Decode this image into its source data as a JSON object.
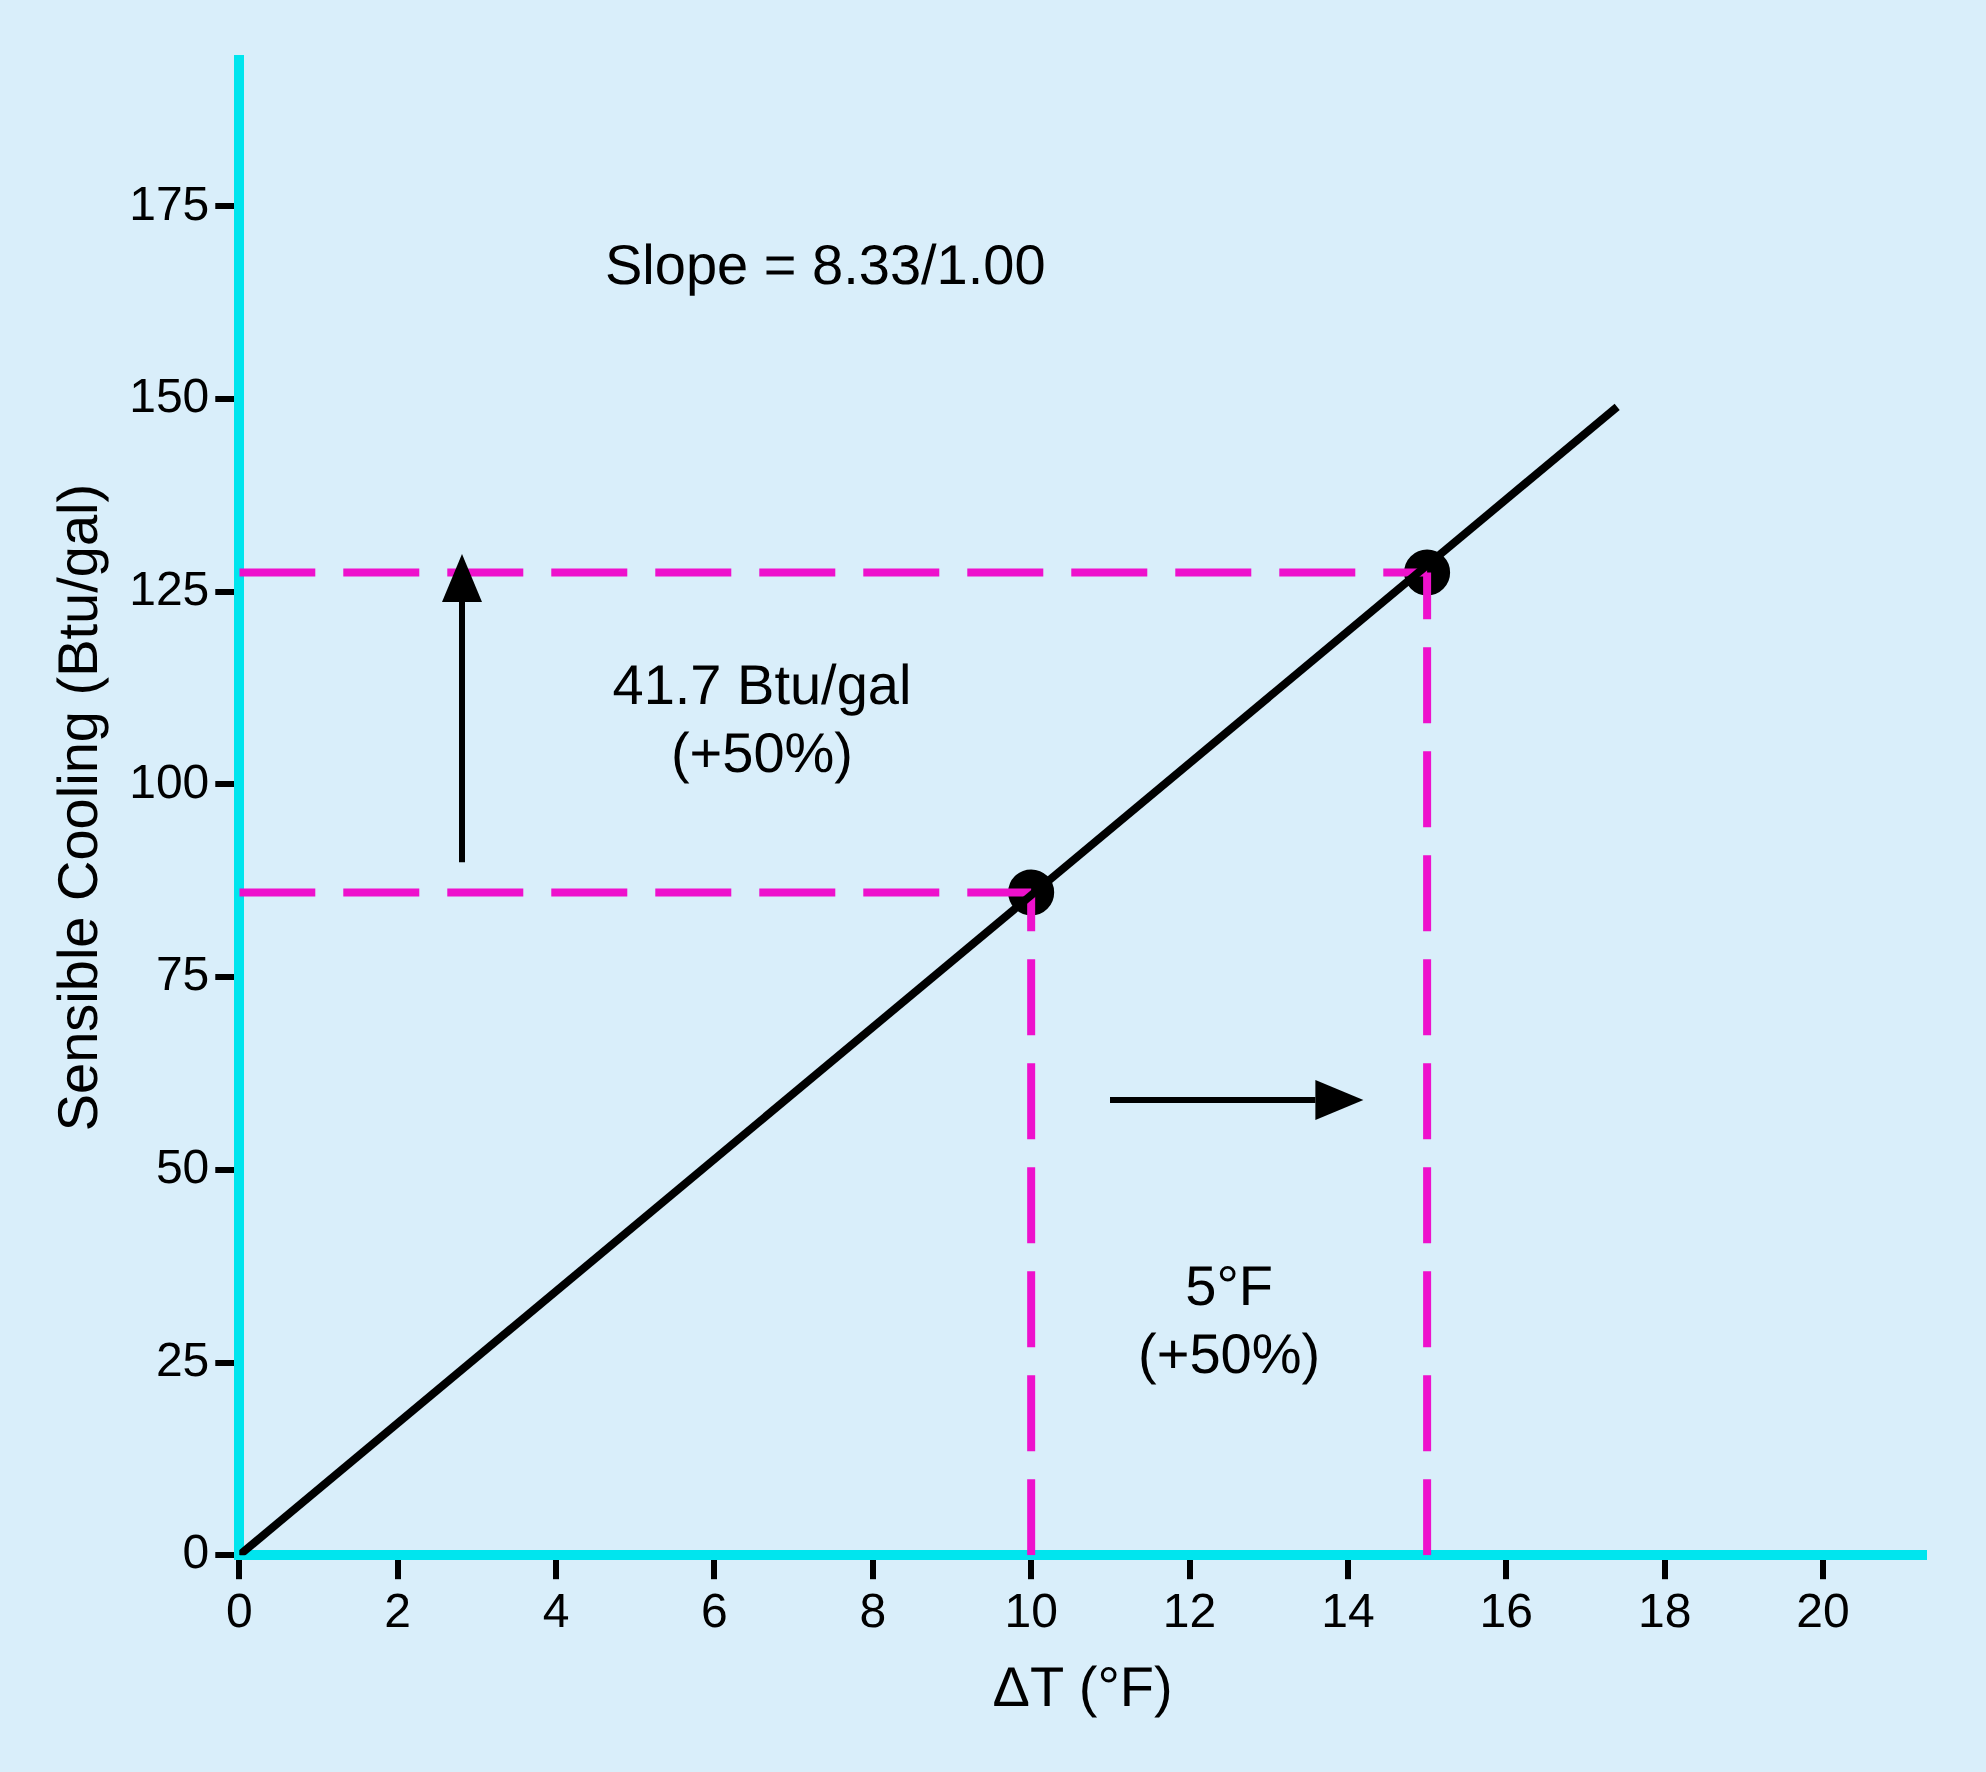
{
  "chart_data": {
    "type": "line",
    "xlabel": "ΔT (°F)",
    "ylabel": "Sensible Cooling (Btu/gal)",
    "xlim": [
      0,
      21.3
    ],
    "ylim": [
      0,
      194
    ],
    "xticks": [
      0,
      2,
      4,
      6,
      8,
      10,
      12,
      14,
      16,
      18,
      20
    ],
    "yticks": [
      0,
      25,
      50,
      75,
      100,
      125,
      150,
      175
    ],
    "grid": false,
    "legend": false,
    "marker": "none",
    "line_style": "solid",
    "series": [
      {
        "color": "#000000",
        "x": [
          0,
          17.4
        ],
        "values": [
          0,
          149
        ]
      },
      {
        "color": "#ee11cc",
        "line_style": "dashed",
        "x": [
          0,
          10
        ],
        "values": [
          86,
          86
        ]
      },
      {
        "color": "#ee11cc",
        "line_style": "dashed",
        "x": [
          10,
          10
        ],
        "values": [
          0,
          86
        ]
      },
      {
        "color": "#ee11cc",
        "line_style": "dashed",
        "x": [
          0,
          15
        ],
        "values": [
          127.5,
          127.5
        ]
      },
      {
        "color": "#ee11cc",
        "line_style": "dashed",
        "x": [
          15,
          15
        ],
        "values": [
          0,
          127.5
        ]
      },
      {
        "type": "scatter",
        "marker": "circle",
        "color": "#000000",
        "x": [
          10,
          15
        ],
        "values": [
          86,
          127.5
        ]
      }
    ],
    "annotations": [
      "Slope = 8.33/1.00",
      "41.7 Btu/gal\n(+50%)",
      "5°F\n(+50%)"
    ]
  }
}
